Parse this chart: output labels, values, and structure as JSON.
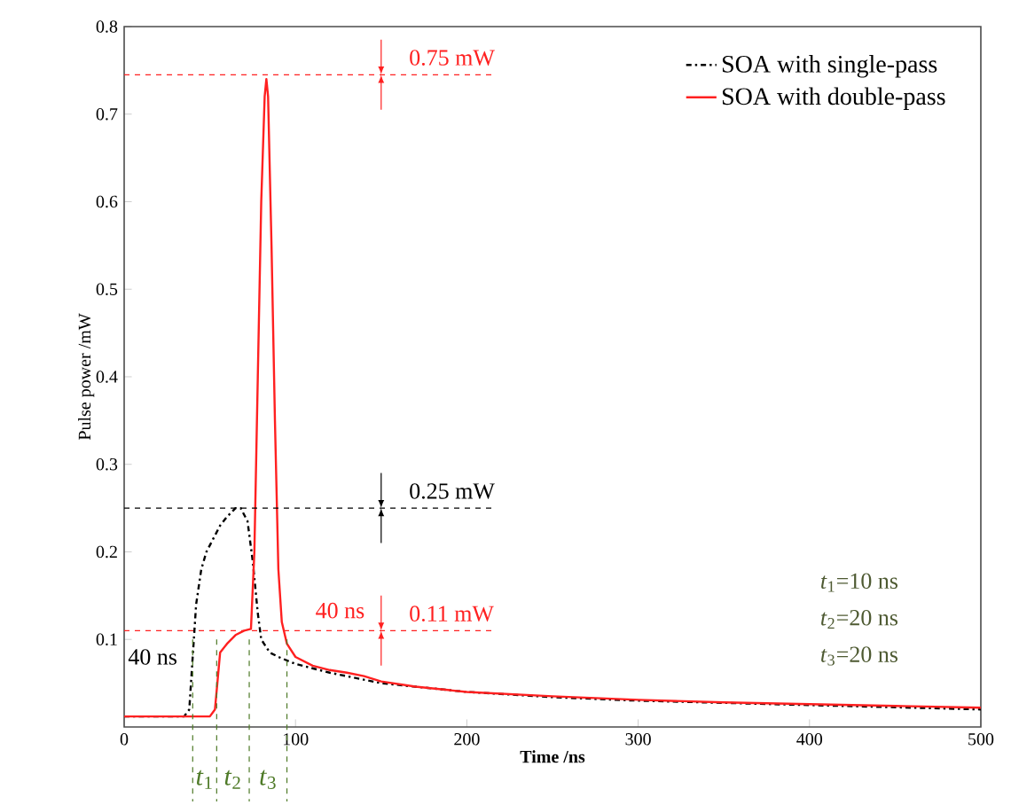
{
  "chart_data": {
    "type": "line",
    "xlabel": "Time /ns",
    "ylabel": "Pulse power /mW",
    "xlim": [
      0,
      500
    ],
    "ylim": [
      0,
      0.8
    ],
    "xticks": [
      0,
      100,
      200,
      300,
      400,
      500
    ],
    "yticks": [
      0.1,
      0.2,
      0.3,
      0.4,
      0.5,
      0.6,
      0.7,
      0.8
    ],
    "legend": "top right",
    "grid": false,
    "marker": "none",
    "series": [
      {
        "name": "SOA with single-pass",
        "color": "#000000",
        "line_style": "dashdot",
        "x": [
          0,
          35,
          38,
          40,
          42,
          45,
          48,
          52,
          56,
          60,
          65,
          68,
          72,
          75,
          78,
          80,
          85,
          90,
          100,
          120,
          150,
          200,
          250,
          300,
          400,
          500
        ],
        "values": [
          0.012,
          0.012,
          0.02,
          0.08,
          0.14,
          0.18,
          0.2,
          0.215,
          0.23,
          0.24,
          0.25,
          0.25,
          0.235,
          0.19,
          0.13,
          0.1,
          0.085,
          0.08,
          0.072,
          0.062,
          0.05,
          0.04,
          0.034,
          0.03,
          0.025,
          0.02
        ]
      },
      {
        "name": "SOA with double-pass",
        "color": "#ff2020",
        "line_style": "solid",
        "x": [
          0,
          50,
          53,
          56,
          60,
          65,
          70,
          74,
          76,
          78,
          80,
          82,
          83,
          84,
          86,
          88,
          90,
          92,
          95,
          100,
          110,
          120,
          130,
          140,
          150,
          170,
          200,
          250,
          300,
          350,
          400,
          450,
          500
        ],
        "values": [
          0.012,
          0.012,
          0.02,
          0.085,
          0.095,
          0.105,
          0.11,
          0.112,
          0.2,
          0.4,
          0.6,
          0.72,
          0.74,
          0.72,
          0.55,
          0.35,
          0.18,
          0.12,
          0.095,
          0.08,
          0.07,
          0.065,
          0.062,
          0.058,
          0.052,
          0.046,
          0.04,
          0.035,
          0.031,
          0.028,
          0.026,
          0.024,
          0.022
        ]
      }
    ],
    "ref_lines": [
      {
        "axis": "y",
        "value": 0.745,
        "label": "0.75 mW",
        "color": "#ff2020",
        "line_style": "dashed"
      },
      {
        "axis": "y",
        "value": 0.25,
        "label": "0.25 mW",
        "color": "#000000",
        "line_style": "dashed"
      },
      {
        "axis": "y",
        "value": 0.11,
        "label": "0.11 mW",
        "color": "#ff2020",
        "line_style": "dashed"
      },
      {
        "axis": "x",
        "value": 40,
        "color": "#4e7a27",
        "line_style": "dashed"
      },
      {
        "axis": "x",
        "value": 54,
        "label": "*t*$_{1}$",
        "color": "#4e7a27",
        "line_style": "dashed"
      },
      {
        "axis": "x",
        "value": 73,
        "label": "*t*$_{2}$",
        "color": "#4e7a27",
        "line_style": "dashed"
      },
      {
        "axis": "x",
        "value": 95,
        "label": "*t*$_{3}$",
        "color": "#4e7a27",
        "line_style": "dashed"
      }
    ],
    "annotations": [
      "40 ns",
      "40 ns",
      "*t*$_{1}$=10 ns",
      "*t*$_{2}$=20 ns",
      "*t*$_{3}$=20 ns"
    ]
  }
}
